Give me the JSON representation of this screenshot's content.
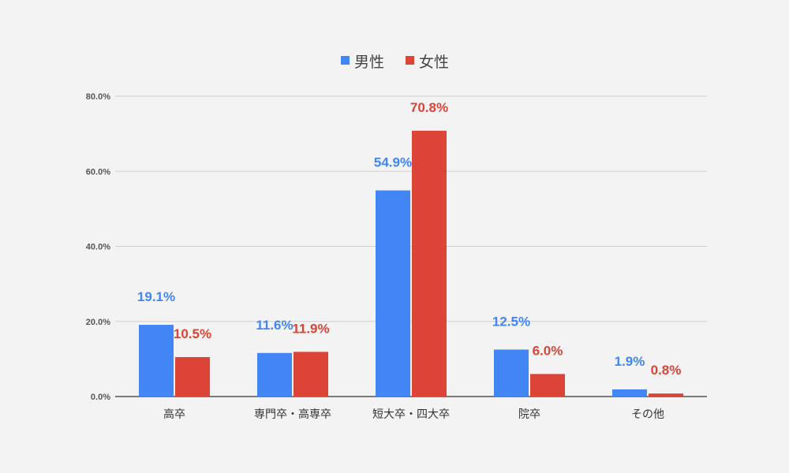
{
  "chart_data": {
    "type": "bar",
    "categories": [
      "高卒",
      "専門卒・高専卒",
      "短大卒・四大卒",
      "院卒",
      "その他"
    ],
    "series": [
      {
        "name": "男性",
        "color": "#4285f4",
        "values": [
          19.1,
          11.6,
          54.9,
          12.5,
          1.9
        ],
        "labels": [
          "19.1%",
          "11.6%",
          "54.9%",
          "12.5%",
          "1.9%"
        ]
      },
      {
        "name": "女性",
        "color": "#db4437",
        "values": [
          10.5,
          11.9,
          70.8,
          6.0,
          0.8
        ],
        "labels": [
          "10.5%",
          "11.9%",
          "70.8%",
          "6.0%",
          "0.8%"
        ]
      }
    ],
    "yticks": [
      "0.0%",
      "20.0%",
      "40.0%",
      "60.0%",
      "80.0%"
    ],
    "ytick_values": [
      0,
      20,
      40,
      60,
      80
    ],
    "ylim": [
      0,
      80
    ],
    "grid": true,
    "legend_position": "top-center"
  }
}
